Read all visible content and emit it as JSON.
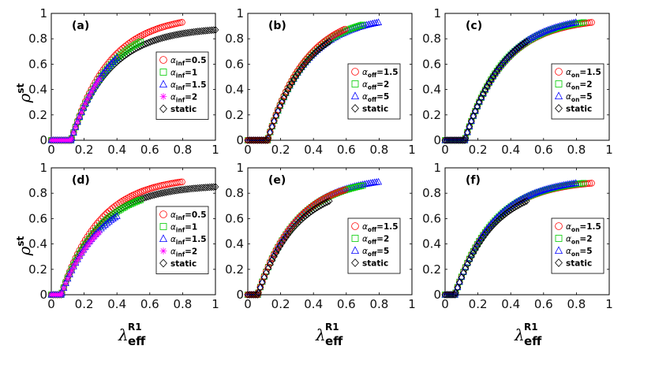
{
  "figure": {
    "ylabel_symbol": "ρ",
    "ylabel_sup": "st",
    "xlabel_symbol": "λ",
    "xlabel_sup": "R1",
    "xlabel_sub": "eff"
  },
  "chart_data": [
    {
      "panel": "(a)",
      "type": "scatter",
      "xlim": [
        0,
        1
      ],
      "ylim": [
        0,
        1
      ],
      "xticks": [
        "0",
        "0.2",
        "0.4",
        "0.6",
        "0.8",
        "1"
      ],
      "yticks": [
        "0",
        "0.2",
        "0.4",
        "0.6",
        "0.8",
        "1"
      ],
      "xlabel": "",
      "ylabel": "ρst",
      "threshold": 0.12,
      "series": [
        {
          "name": "α",
          "sub": "inf",
          "eq": "=0.5",
          "color": "#ff0000",
          "marker": "circle",
          "xmax": 0.8,
          "ymax": 0.93
        },
        {
          "name": "α",
          "sub": "inf",
          "eq": "=1",
          "color": "#00cc00",
          "marker": "square",
          "xmax": 0.55,
          "ymax": 0.78
        },
        {
          "name": "α",
          "sub": "inf",
          "eq": "=1.5",
          "color": "#0000ff",
          "marker": "triangle",
          "xmax": 0.4,
          "ymax": 0.65
        },
        {
          "name": "α",
          "sub": "inf",
          "eq": "=2",
          "color": "#ff00ff",
          "marker": "star",
          "xmax": 0.3,
          "ymax": 0.5
        },
        {
          "name": "static",
          "sub": "",
          "eq": "",
          "color": "#000000",
          "marker": "diamond",
          "xmax": 1.0,
          "ymax": 0.87
        }
      ]
    },
    {
      "panel": "(b)",
      "type": "scatter",
      "xlim": [
        0,
        1
      ],
      "ylim": [
        0,
        1
      ],
      "xticks": [
        "0",
        "0.2",
        "0.4",
        "0.6",
        "0.8",
        "1"
      ],
      "yticks": [
        "0",
        "0.2",
        "0.4",
        "0.6",
        "0.8",
        "1"
      ],
      "xlabel": "",
      "ylabel": "",
      "threshold": 0.12,
      "series": [
        {
          "name": "α",
          "sub": "off",
          "eq": "=1.5",
          "color": "#ff0000",
          "marker": "circle",
          "xmax": 0.6,
          "ymax": 0.88
        },
        {
          "name": "α",
          "sub": "off",
          "eq": "=2",
          "color": "#00cc00",
          "marker": "square",
          "xmax": 0.7,
          "ymax": 0.91
        },
        {
          "name": "α",
          "sub": "off",
          "eq": "=5",
          "color": "#0000ff",
          "marker": "triangle",
          "xmax": 0.8,
          "ymax": 0.93
        },
        {
          "name": "static",
          "sub": "",
          "eq": "",
          "color": "#000000",
          "marker": "diamond",
          "xmax": 0.5,
          "ymax": 0.78
        }
      ]
    },
    {
      "panel": "(c)",
      "type": "scatter",
      "xlim": [
        0,
        1
      ],
      "ylim": [
        0,
        1
      ],
      "xticks": [
        "0",
        "0.2",
        "0.4",
        "0.6",
        "0.8",
        "1"
      ],
      "yticks": [
        "0",
        "0.2",
        "0.4",
        "0.6",
        "0.8",
        "1"
      ],
      "xlabel": "",
      "ylabel": "",
      "threshold": 0.12,
      "series": [
        {
          "name": "α",
          "sub": "on",
          "eq": "=1.5",
          "color": "#ff0000",
          "marker": "circle",
          "xmax": 0.9,
          "ymax": 0.93
        },
        {
          "name": "α",
          "sub": "on",
          "eq": "=2",
          "color": "#00cc00",
          "marker": "square",
          "xmax": 0.85,
          "ymax": 0.93
        },
        {
          "name": "α",
          "sub": "on",
          "eq": "=5",
          "color": "#0000ff",
          "marker": "triangle",
          "xmax": 0.8,
          "ymax": 0.93
        },
        {
          "name": "static",
          "sub": "",
          "eq": "",
          "color": "#000000",
          "marker": "diamond",
          "xmax": 0.5,
          "ymax": 0.78
        }
      ]
    },
    {
      "panel": "(d)",
      "type": "scatter",
      "xlim": [
        0,
        1
      ],
      "ylim": [
        0,
        1
      ],
      "xticks": [
        "0",
        "0.2",
        "0.4",
        "0.6",
        "0.8",
        "1"
      ],
      "yticks": [
        "0",
        "0.2",
        "0.4",
        "0.6",
        "0.8",
        "1"
      ],
      "xlabel": "λeffR1",
      "ylabel": "ρst",
      "threshold": 0.06,
      "series": [
        {
          "name": "α",
          "sub": "inf",
          "eq": "=0.5",
          "color": "#ff0000",
          "marker": "circle",
          "xmax": 0.8,
          "ymax": 0.89
        },
        {
          "name": "α",
          "sub": "inf",
          "eq": "=1",
          "color": "#00cc00",
          "marker": "square",
          "xmax": 0.55,
          "ymax": 0.75
        },
        {
          "name": "α",
          "sub": "inf",
          "eq": "=1.5",
          "color": "#0000ff",
          "marker": "triangle",
          "xmax": 0.4,
          "ymax": 0.62
        },
        {
          "name": "α",
          "sub": "inf",
          "eq": "=2",
          "color": "#ff00ff",
          "marker": "star",
          "xmax": 0.3,
          "ymax": 0.5
        },
        {
          "name": "static",
          "sub": "",
          "eq": "",
          "color": "#000000",
          "marker": "diamond",
          "xmax": 1.0,
          "ymax": 0.85
        }
      ]
    },
    {
      "panel": "(e)",
      "type": "scatter",
      "xlim": [
        0,
        1
      ],
      "ylim": [
        0,
        1
      ],
      "xticks": [
        "0",
        "0.2",
        "0.4",
        "0.6",
        "0.8",
        "1"
      ],
      "yticks": [
        "0",
        "0.2",
        "0.4",
        "0.6",
        "0.8",
        "1"
      ],
      "xlabel": "λeffR1",
      "ylabel": "",
      "threshold": 0.06,
      "series": [
        {
          "name": "α",
          "sub": "off",
          "eq": "=1.5",
          "color": "#ff0000",
          "marker": "circle",
          "xmax": 0.6,
          "ymax": 0.83
        },
        {
          "name": "α",
          "sub": "off",
          "eq": "=2",
          "color": "#00cc00",
          "marker": "square",
          "xmax": 0.7,
          "ymax": 0.86
        },
        {
          "name": "α",
          "sub": "off",
          "eq": "=5",
          "color": "#0000ff",
          "marker": "triangle",
          "xmax": 0.8,
          "ymax": 0.89
        },
        {
          "name": "static",
          "sub": "",
          "eq": "",
          "color": "#000000",
          "marker": "diamond",
          "xmax": 0.5,
          "ymax": 0.74
        }
      ]
    },
    {
      "panel": "(f)",
      "type": "scatter",
      "xlim": [
        0,
        1
      ],
      "ylim": [
        0,
        1
      ],
      "xticks": [
        "0",
        "0.2",
        "0.4",
        "0.6",
        "0.8",
        "1"
      ],
      "yticks": [
        "0",
        "0.2",
        "0.4",
        "0.6",
        "0.8",
        "1"
      ],
      "xlabel": "λeffR1",
      "ylabel": "",
      "threshold": 0.06,
      "series": [
        {
          "name": "α",
          "sub": "on",
          "eq": "=1.5",
          "color": "#ff0000",
          "marker": "circle",
          "xmax": 0.9,
          "ymax": 0.88
        },
        {
          "name": "α",
          "sub": "on",
          "eq": "=2",
          "color": "#00cc00",
          "marker": "square",
          "xmax": 0.85,
          "ymax": 0.88
        },
        {
          "name": "α",
          "sub": "on",
          "eq": "=5",
          "color": "#0000ff",
          "marker": "triangle",
          "xmax": 0.8,
          "ymax": 0.88
        },
        {
          "name": "static",
          "sub": "",
          "eq": "",
          "color": "#000000",
          "marker": "diamond",
          "xmax": 0.5,
          "ymax": 0.74
        }
      ]
    }
  ]
}
